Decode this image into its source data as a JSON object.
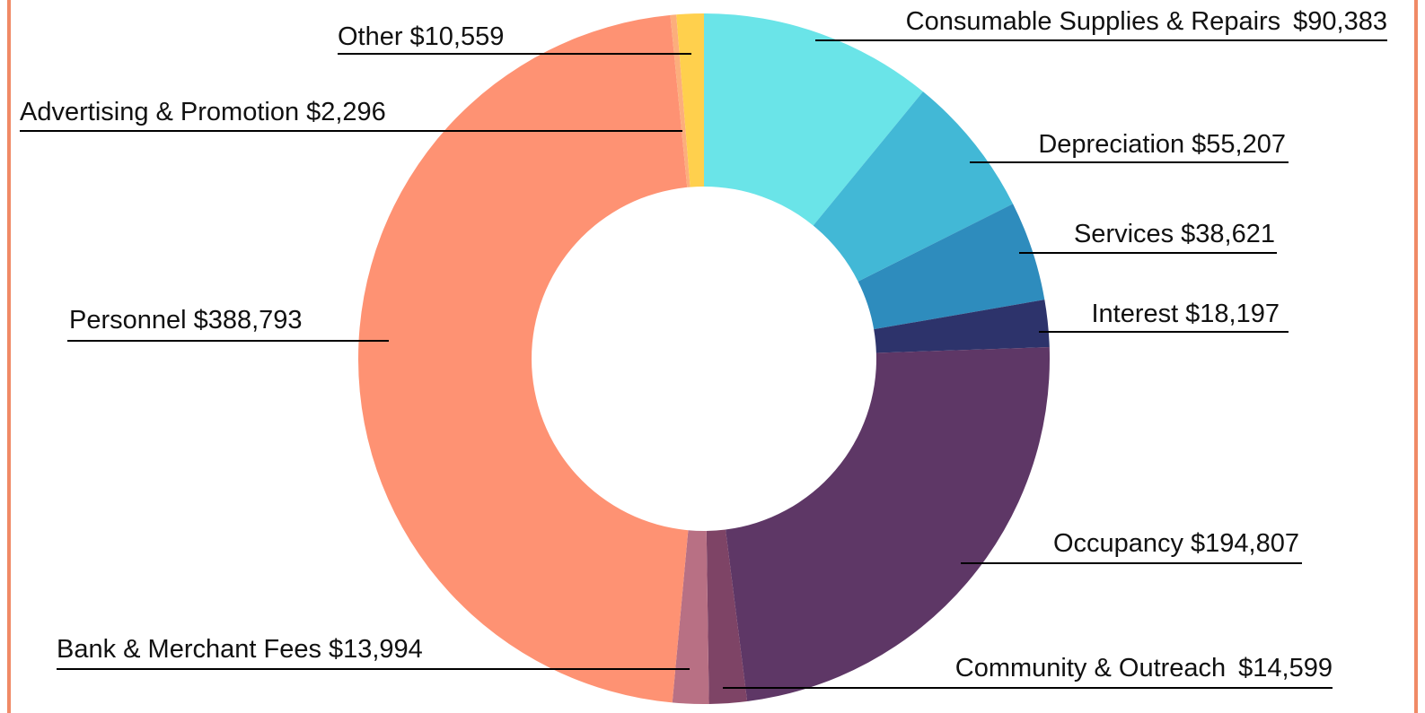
{
  "chart_data": {
    "type": "donut",
    "categories": [
      "Consumable Supplies & Repairs",
      "Depreciation",
      "Services",
      "Interest",
      "Occupancy",
      "Community & Outreach",
      "Bank & Merchant Fees",
      "Personnel",
      "Advertising & Promotion",
      "Other"
    ],
    "values": [
      90383,
      55207,
      38621,
      18197,
      194807,
      14599,
      13994,
      388793,
      2296,
      10559
    ],
    "value_labels": [
      "$90,383",
      "$55,207",
      "$38,621",
      "$18,197",
      "$194,807",
      "$14,599",
      "$13,994",
      "$388,793",
      "$2,296",
      "$10,559"
    ],
    "colors": [
      "#6ae4e8",
      "#42b8d6",
      "#2e8cbd",
      "#2d336b",
      "#5e3766",
      "#7e4466",
      "#b87084",
      "#fe9273",
      "#fcae7c",
      "#ffd04d"
    ]
  }
}
